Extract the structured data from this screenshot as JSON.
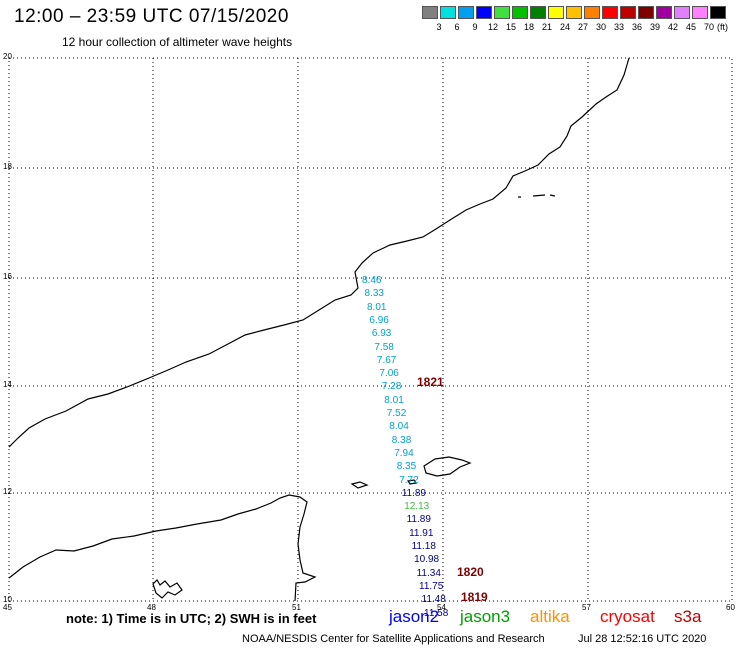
{
  "header": {
    "title": "12:00 – 23:59 UTC 07/15/2020",
    "subtitle": "12 hour collection of altimeter wave heights"
  },
  "legend": {
    "ticks": [
      "3",
      "6",
      "9",
      "12",
      "15",
      "18",
      "21",
      "24",
      "27",
      "30",
      "33",
      "36",
      "39",
      "42",
      "45",
      "70"
    ],
    "unit": "(ft)",
    "colors": [
      "#808080",
      "#00e0e0",
      "#00a0f0",
      "#0000ff",
      "#40e040",
      "#00c000",
      "#008000",
      "#ffff00",
      "#ffc000",
      "#ff8000",
      "#ff0000",
      "#c00000",
      "#800000",
      "#a000a0",
      "#e080ff",
      "#ff80ff",
      "#000000"
    ]
  },
  "axes": {
    "lat_labels": [
      "20",
      "18",
      "16",
      "14",
      "12",
      "10"
    ],
    "lon_labels": [
      "45",
      "48",
      "51",
      "54",
      "57",
      "60"
    ]
  },
  "track_colors": {
    "cyan": "#00a0d0",
    "navy": "#000090",
    "green": "#40c040",
    "pass": "#800000"
  },
  "observations": [
    {
      "value": "8.46",
      "color": "cyan"
    },
    {
      "value": "8.33",
      "color": "cyan"
    },
    {
      "value": "8.01",
      "color": "cyan"
    },
    {
      "value": "6.96",
      "color": "cyan"
    },
    {
      "value": "6.93",
      "color": "cyan"
    },
    {
      "value": "7.58",
      "color": "cyan"
    },
    {
      "value": "7.67",
      "color": "cyan"
    },
    {
      "value": "7.06",
      "color": "cyan"
    },
    {
      "value": "7.28",
      "color": "cyan"
    },
    {
      "value": "8.01",
      "color": "cyan"
    },
    {
      "value": "7.52",
      "color": "cyan"
    },
    {
      "value": "8.04",
      "color": "cyan"
    },
    {
      "value": "8.38",
      "color": "cyan"
    },
    {
      "value": "7.94",
      "color": "cyan"
    },
    {
      "value": "8.35",
      "color": "cyan"
    },
    {
      "value": "7.72",
      "color": "cyan"
    },
    {
      "value": "11.89",
      "color": "navy"
    },
    {
      "value": "12.13",
      "color": "green"
    },
    {
      "value": "11.89",
      "color": "navy"
    },
    {
      "value": "11.91",
      "color": "navy"
    },
    {
      "value": "11.18",
      "color": "navy"
    },
    {
      "value": "10.98",
      "color": "navy"
    },
    {
      "value": "11.34",
      "color": "navy"
    },
    {
      "value": "11.75",
      "color": "navy"
    },
    {
      "value": "11.48",
      "color": "navy"
    },
    {
      "value": "11.58",
      "color": "navy"
    }
  ],
  "passes": [
    {
      "label": "1821"
    },
    {
      "label": "1820"
    },
    {
      "label": "1819"
    }
  ],
  "footer": {
    "note": "note: 1) Time is in UTC; 2) SWH is in feet",
    "satellites": [
      {
        "name": "jason2",
        "color": "#0000ff"
      },
      {
        "name": "jason3",
        "color": "#00a000"
      },
      {
        "name": "altika",
        "color": "#ff9000"
      },
      {
        "name": "cryosat",
        "color": "#ff0000"
      },
      {
        "name": "s3a",
        "color": "#c00000"
      }
    ],
    "credit": "NOAA/NESDIS Center for Satellite Applications and Research",
    "timestamp": "Jul 28 12:52:16 UTC 2020"
  }
}
